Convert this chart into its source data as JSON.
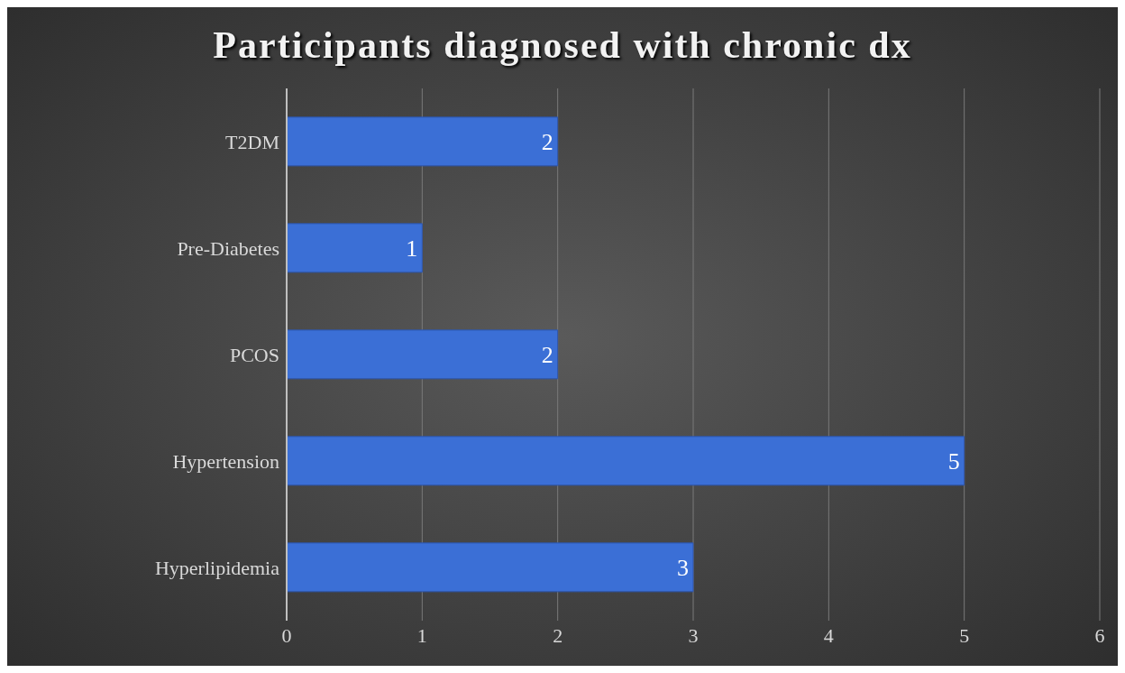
{
  "chart_data": {
    "type": "bar",
    "orientation": "horizontal",
    "title": "Participants diagnosed with chronic dx",
    "categories": [
      "T2DM",
      "Pre-Diabetes",
      "PCOS",
      "Hypertension",
      "Hyperlipidemia"
    ],
    "values": [
      2,
      1,
      2,
      5,
      3
    ],
    "color": "#3b6fd6",
    "xlim": [
      0,
      6
    ],
    "xticks": [
      0,
      1,
      2,
      3,
      4,
      5,
      6
    ],
    "grid": "x",
    "data_labels": true
  }
}
